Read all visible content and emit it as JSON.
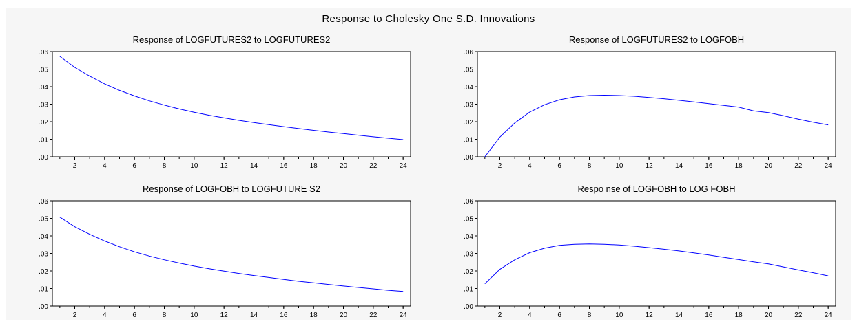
{
  "title": "Response to Cholesky One S.D. Innovations",
  "colors": {
    "line": "#0000ff",
    "panel_bg": "#ffffff",
    "figure_bg": "#f6f6f6",
    "axis": "#000000"
  },
  "chart_data": [
    {
      "type": "line",
      "title": "Response of LOGFUTURES2 to LOGFUTURES2",
      "xlim": [
        0.5,
        24.5
      ],
      "ylim": [
        0,
        0.06
      ],
      "xticks": [
        "2",
        "4",
        "6",
        "8",
        "10",
        "12",
        "14",
        "16",
        "18",
        "20",
        "22",
        "24"
      ],
      "yticks": [
        ".00",
        ".01",
        ".02",
        ".03",
        ".04",
        ".05",
        ".06"
      ],
      "grid": false,
      "x": [
        1,
        2,
        3,
        4,
        5,
        6,
        7,
        8,
        9,
        10,
        11,
        12,
        13,
        14,
        15,
        16,
        17,
        18,
        19,
        20,
        21,
        22,
        23,
        24
      ],
      "series": [
        {
          "values": [
            0.0573,
            0.051,
            0.046,
            0.0416,
            0.0379,
            0.0347,
            0.0319,
            0.0295,
            0.0273,
            0.0254,
            0.0237,
            0.0222,
            0.0208,
            0.0195,
            0.0183,
            0.0172,
            0.0161,
            0.0151,
            0.0141,
            0.0132,
            0.0123,
            0.0114,
            0.0106,
            0.0098
          ]
        }
      ]
    },
    {
      "type": "line",
      "title": "Response of LOGFUTURES2 to LOGFOBH",
      "xlim": [
        0.5,
        24.5
      ],
      "ylim": [
        0,
        0.06
      ],
      "xticks": [
        "2",
        "4",
        "6",
        "8",
        "10",
        "12",
        "14",
        "16",
        "18",
        "20",
        "22",
        "24"
      ],
      "yticks": [
        ".00",
        ".01",
        ".02",
        ".03",
        ".04",
        ".05",
        ".06"
      ],
      "grid": false,
      "x": [
        1,
        2,
        3,
        4,
        5,
        6,
        7,
        8,
        9,
        10,
        11,
        12,
        13,
        14,
        15,
        16,
        17,
        18,
        19,
        20,
        21,
        22,
        23,
        24
      ],
      "series": [
        {
          "values": [
            0.0,
            0.0112,
            0.0193,
            0.0255,
            0.0297,
            0.0325,
            0.0341,
            0.0349,
            0.0351,
            0.0349,
            0.0345,
            0.0338,
            0.0331,
            0.0322,
            0.0313,
            0.0303,
            0.0293,
            0.0283,
            0.0262,
            0.0252,
            0.0234,
            0.0215,
            0.0197,
            0.0182
          ]
        }
      ]
    },
    {
      "type": "line",
      "title": "Response of LOGFOBH to LOGFUTURE S2",
      "xlim": [
        0.5,
        24.5
      ],
      "ylim": [
        0,
        0.06
      ],
      "xticks": [
        "2",
        "4",
        "6",
        "8",
        "10",
        "12",
        "14",
        "16",
        "18",
        "20",
        "22",
        "24"
      ],
      "yticks": [
        ".00",
        ".01",
        ".02",
        ".03",
        ".04",
        ".05",
        ".06"
      ],
      "grid": false,
      "x": [
        1,
        2,
        3,
        4,
        5,
        6,
        7,
        8,
        9,
        10,
        11,
        12,
        13,
        14,
        15,
        16,
        17,
        18,
        19,
        20,
        21,
        22,
        23,
        24
      ],
      "series": [
        {
          "values": [
            0.0507,
            0.0452,
            0.0409,
            0.0371,
            0.0338,
            0.0309,
            0.0285,
            0.0264,
            0.0245,
            0.0228,
            0.0213,
            0.0199,
            0.0186,
            0.0174,
            0.0163,
            0.0152,
            0.0141,
            0.0132,
            0.0123,
            0.0114,
            0.0106,
            0.0098,
            0.009,
            0.0083
          ]
        }
      ]
    },
    {
      "type": "line",
      "title": "Respo nse of LOGFOBH to LOG FOBH",
      "xlim": [
        0.5,
        24.5
      ],
      "ylim": [
        0,
        0.06
      ],
      "xticks": [
        "2",
        "4",
        "6",
        "8",
        "10",
        "12",
        "14",
        "16",
        "18",
        "20",
        "22",
        "24"
      ],
      "yticks": [
        ".00",
        ".01",
        ".02",
        ".03",
        ".04",
        ".05",
        ".06"
      ],
      "grid": false,
      "x": [
        1,
        2,
        3,
        4,
        5,
        6,
        7,
        8,
        9,
        10,
        11,
        12,
        13,
        14,
        15,
        16,
        17,
        18,
        19,
        20,
        21,
        22,
        23,
        24
      ],
      "series": [
        {
          "values": [
            0.0127,
            0.0209,
            0.0264,
            0.0304,
            0.033,
            0.0346,
            0.0352,
            0.0354,
            0.0352,
            0.0348,
            0.0341,
            0.0333,
            0.0324,
            0.0314,
            0.0303,
            0.0291,
            0.0278,
            0.0265,
            0.0252,
            0.024,
            0.0223,
            0.0206,
            0.019,
            0.0172
          ]
        }
      ]
    }
  ]
}
